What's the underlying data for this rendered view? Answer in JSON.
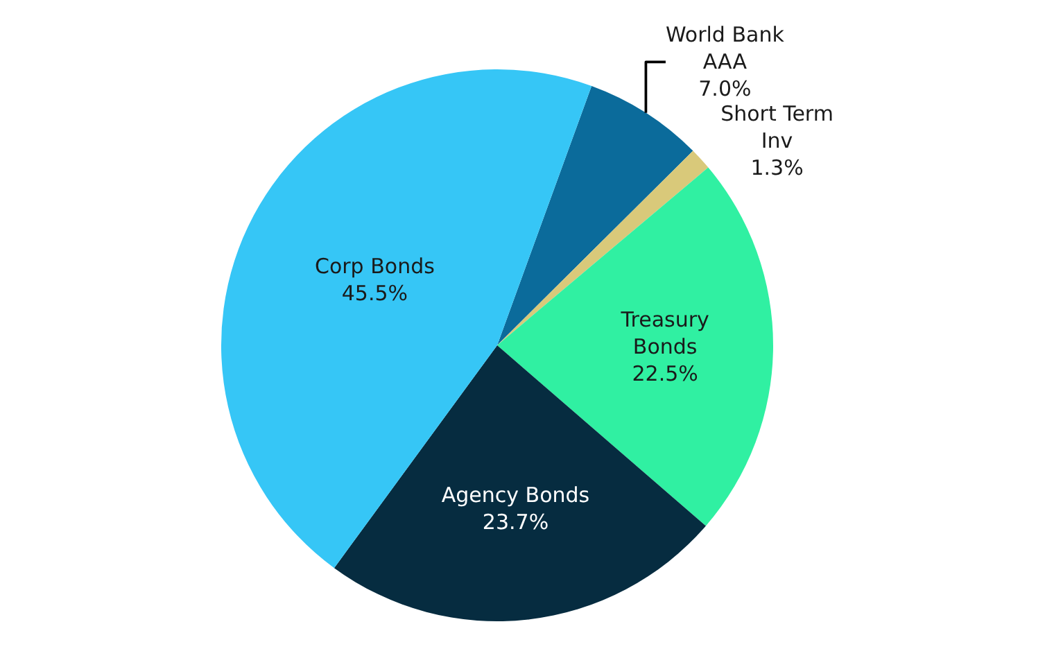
{
  "chart_data": {
    "type": "pie",
    "categories": [
      "World Bank AAA",
      "Short Term Inv",
      "Treasury Bonds",
      "Agency Bonds",
      "Corp Bonds"
    ],
    "values": [
      7.0,
      1.3,
      22.5,
      23.7,
      45.5
    ],
    "value_labels": [
      "7.0%",
      "1.3%",
      "22.5%",
      "23.7%",
      "45.5%"
    ],
    "colors": [
      "#0b6b9b",
      "#d9c97a",
      "#30f0a2",
      "#062c40",
      "#36c6f6"
    ],
    "legend": false
  }
}
